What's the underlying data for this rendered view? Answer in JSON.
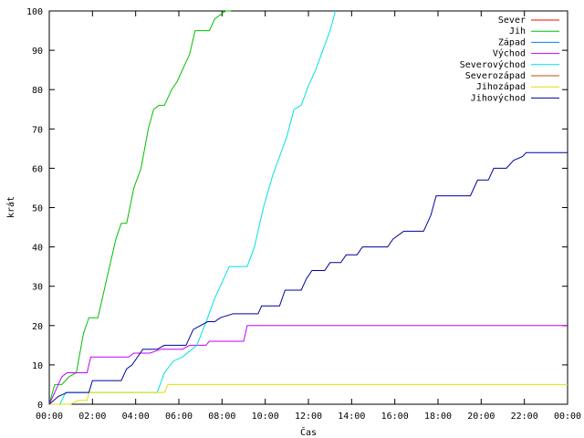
{
  "chart_data": {
    "type": "line",
    "xlabel": "Čas",
    "ylabel": "krát",
    "ylim": [
      0,
      100
    ],
    "xlim": [
      "00:00",
      "24:00"
    ],
    "xtick_labels": [
      "00:00",
      "02:00",
      "04:00",
      "06:00",
      "08:00",
      "10:00",
      "12:00",
      "14:00",
      "16:00",
      "18:00",
      "20:00",
      "22:00",
      "00:00"
    ],
    "ytick_labels": [
      "0",
      "10",
      "20",
      "30",
      "40",
      "50",
      "60",
      "70",
      "80",
      "90",
      "100"
    ],
    "legend_position": "top-right",
    "grid": false,
    "series": [
      {
        "name": "Sever",
        "color": "#ff0000",
        "points": []
      },
      {
        "name": "Jih",
        "color": "#00c000",
        "points": [
          [
            "00:00",
            0
          ],
          [
            "00:15",
            5
          ],
          [
            "00:35",
            5
          ],
          [
            "00:55",
            7
          ],
          [
            "01:15",
            8
          ],
          [
            "01:35",
            18
          ],
          [
            "01:50",
            22
          ],
          [
            "02:15",
            22
          ],
          [
            "02:40",
            32
          ],
          [
            "03:05",
            42
          ],
          [
            "03:20",
            46
          ],
          [
            "03:35",
            46
          ],
          [
            "03:55",
            55
          ],
          [
            "04:15",
            60
          ],
          [
            "04:35",
            70
          ],
          [
            "04:50",
            75
          ],
          [
            "05:05",
            76
          ],
          [
            "05:20",
            76
          ],
          [
            "05:40",
            80
          ],
          [
            "05:55",
            82
          ],
          [
            "06:15",
            86
          ],
          [
            "06:30",
            89
          ],
          [
            "06:45",
            95
          ],
          [
            "07:10",
            95
          ],
          [
            "07:25",
            95
          ],
          [
            "07:40",
            98
          ],
          [
            "07:55",
            99
          ],
          [
            "08:10",
            100
          ],
          [
            "08:25",
            100
          ]
        ]
      },
      {
        "name": "Západ",
        "color": "#0080ff",
        "points": []
      },
      {
        "name": "Východ",
        "color": "#c000ff",
        "points": [
          [
            "00:00",
            0
          ],
          [
            "00:20",
            4
          ],
          [
            "00:35",
            7
          ],
          [
            "00:50",
            8
          ],
          [
            "01:45",
            8
          ],
          [
            "01:55",
            12
          ],
          [
            "03:40",
            12
          ],
          [
            "03:55",
            13
          ],
          [
            "04:40",
            13
          ],
          [
            "05:10",
            14
          ],
          [
            "06:10",
            14
          ],
          [
            "06:30",
            15
          ],
          [
            "07:15",
            15
          ],
          [
            "07:25",
            16
          ],
          [
            "09:00",
            16
          ],
          [
            "09:10",
            20
          ],
          [
            "24:00",
            20
          ]
        ]
      },
      {
        "name": "Severovýchod",
        "color": "#00e0e0",
        "points": [
          [
            "00:30",
            0
          ],
          [
            "00:45",
            3
          ],
          [
            "01:45",
            3
          ],
          [
            "02:00",
            3
          ],
          [
            "05:00",
            3
          ],
          [
            "05:20",
            8
          ],
          [
            "05:45",
            11
          ],
          [
            "06:10",
            12
          ],
          [
            "06:50",
            15
          ],
          [
            "07:20",
            22
          ],
          [
            "07:40",
            27
          ],
          [
            "07:55",
            30
          ],
          [
            "08:20",
            35
          ],
          [
            "09:10",
            35
          ],
          [
            "09:30",
            40
          ],
          [
            "09:55",
            50
          ],
          [
            "10:20",
            58
          ],
          [
            "10:40",
            63
          ],
          [
            "11:00",
            68
          ],
          [
            "11:20",
            75
          ],
          [
            "11:40",
            76
          ],
          [
            "12:00",
            81
          ],
          [
            "12:20",
            85
          ],
          [
            "12:40",
            90
          ],
          [
            "13:00",
            95
          ],
          [
            "13:15",
            100
          ]
        ]
      },
      {
        "name": "Severozápad",
        "color": "#c05000",
        "points": []
      },
      {
        "name": "Jihozápad",
        "color": "#e0e000",
        "points": [
          [
            "00:00",
            0
          ],
          [
            "01:00",
            0
          ],
          [
            "01:20",
            1
          ],
          [
            "01:45",
            1
          ],
          [
            "01:50",
            3
          ],
          [
            "05:20",
            3
          ],
          [
            "05:30",
            5
          ],
          [
            "24:00",
            5
          ]
        ]
      },
      {
        "name": "Jihovýchod",
        "color": "#0000a0",
        "points": [
          [
            "00:00",
            0
          ],
          [
            "00:25",
            2
          ],
          [
            "00:50",
            3
          ],
          [
            "01:50",
            3
          ],
          [
            "02:00",
            6
          ],
          [
            "03:20",
            6
          ],
          [
            "03:35",
            9
          ],
          [
            "03:50",
            10
          ],
          [
            "04:20",
            14
          ],
          [
            "05:00",
            14
          ],
          [
            "05:20",
            15
          ],
          [
            "06:20",
            15
          ],
          [
            "06:40",
            19
          ],
          [
            "07:20",
            21
          ],
          [
            "07:40",
            21
          ],
          [
            "07:55",
            22
          ],
          [
            "08:30",
            23
          ],
          [
            "09:40",
            23
          ],
          [
            "09:50",
            25
          ],
          [
            "10:40",
            25
          ],
          [
            "10:55",
            29
          ],
          [
            "11:40",
            29
          ],
          [
            "11:55",
            32
          ],
          [
            "12:10",
            34
          ],
          [
            "12:45",
            34
          ],
          [
            "13:00",
            36
          ],
          [
            "13:30",
            36
          ],
          [
            "13:45",
            38
          ],
          [
            "14:15",
            38
          ],
          [
            "14:30",
            40
          ],
          [
            "15:40",
            40
          ],
          [
            "15:55",
            42
          ],
          [
            "16:25",
            44
          ],
          [
            "17:20",
            44
          ],
          [
            "17:40",
            48
          ],
          [
            "17:55",
            53
          ],
          [
            "19:30",
            53
          ],
          [
            "19:50",
            57
          ],
          [
            "20:20",
            57
          ],
          [
            "20:35",
            60
          ],
          [
            "21:10",
            60
          ],
          [
            "21:30",
            62
          ],
          [
            "21:55",
            63
          ],
          [
            "22:05",
            64
          ],
          [
            "24:00",
            64
          ]
        ]
      }
    ]
  }
}
